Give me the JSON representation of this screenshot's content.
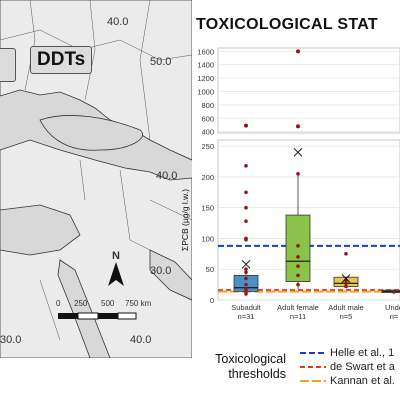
{
  "map": {
    "tag_left": "",
    "tag_ddts": "DDTs",
    "coords": {
      "top_left": "40.0",
      "right_top": "50.0",
      "right_mid": "40.0",
      "right_low": "30.0",
      "bottom_left": "30.0",
      "bottom_mid": "40.0"
    },
    "scale_labels": [
      "0",
      "250",
      "500",
      "750 km"
    ],
    "north_label": "N",
    "colors": {
      "land": "#ebebeb",
      "sea": "#d8d8d8",
      "border": "#333333"
    }
  },
  "chart_data": {
    "type": "box",
    "title": "TOXICOLOGICAL STAT",
    "ylabel": "ΣPCB (μg/g l.w.)",
    "broken_axis": true,
    "upper_ylim": [
      380,
      1650
    ],
    "upper_ticks": [
      400,
      600,
      800,
      1000,
      1200,
      1400,
      1600
    ],
    "lower_ylim": [
      0,
      260
    ],
    "lower_ticks": [
      0,
      50,
      100,
      150,
      200,
      250
    ],
    "grid": true,
    "categories": [
      {
        "label": "Subadult",
        "n": "n=31",
        "color": "#4a90c8",
        "q1": 14,
        "median": 20,
        "q3": 40,
        "whisker_low": 6,
        "whisker_high": 52,
        "mean": 58,
        "points": [
          10,
          14,
          18,
          25,
          35,
          45,
          50,
          98,
          100,
          128,
          150,
          175,
          218,
          490
        ]
      },
      {
        "label": "Adult female",
        "n": "n=11",
        "color": "#8bc34a",
        "q1": 30,
        "median": 63,
        "q3": 138,
        "whisker_low": 18,
        "whisker_high": 205,
        "mean": 240,
        "points": [
          25,
          40,
          55,
          70,
          88,
          205,
          480,
          1600
        ]
      },
      {
        "label": "Adult male",
        "n": "n=5",
        "color": "#e8c547",
        "q1": 22,
        "median": 27,
        "q3": 37,
        "whisker_low": 20,
        "whisker_high": 38,
        "mean": 35,
        "points": [
          22,
          27,
          32,
          75
        ]
      },
      {
        "label": "Unde",
        "n": "n=",
        "color": "#9e9e9e",
        "q1": 12,
        "median": 14,
        "q3": 16,
        "whisker_low": 11,
        "whisker_high": 17,
        "mean": null,
        "points": [
          13
        ]
      }
    ],
    "thresholds": [
      {
        "label": "Helle et al., 1",
        "value": 88,
        "color": "#1a3ad6",
        "style": "dashed"
      },
      {
        "label": "de Swart et a",
        "value": 16,
        "color": "#e8342c",
        "style": "dashed"
      },
      {
        "label": "Kannan et al.",
        "value": 16,
        "color": "#f2a516",
        "style": "longdash"
      }
    ],
    "point_color": "#8b1a1a",
    "legend_title": [
      "Toxicological",
      "thresholds"
    ]
  }
}
